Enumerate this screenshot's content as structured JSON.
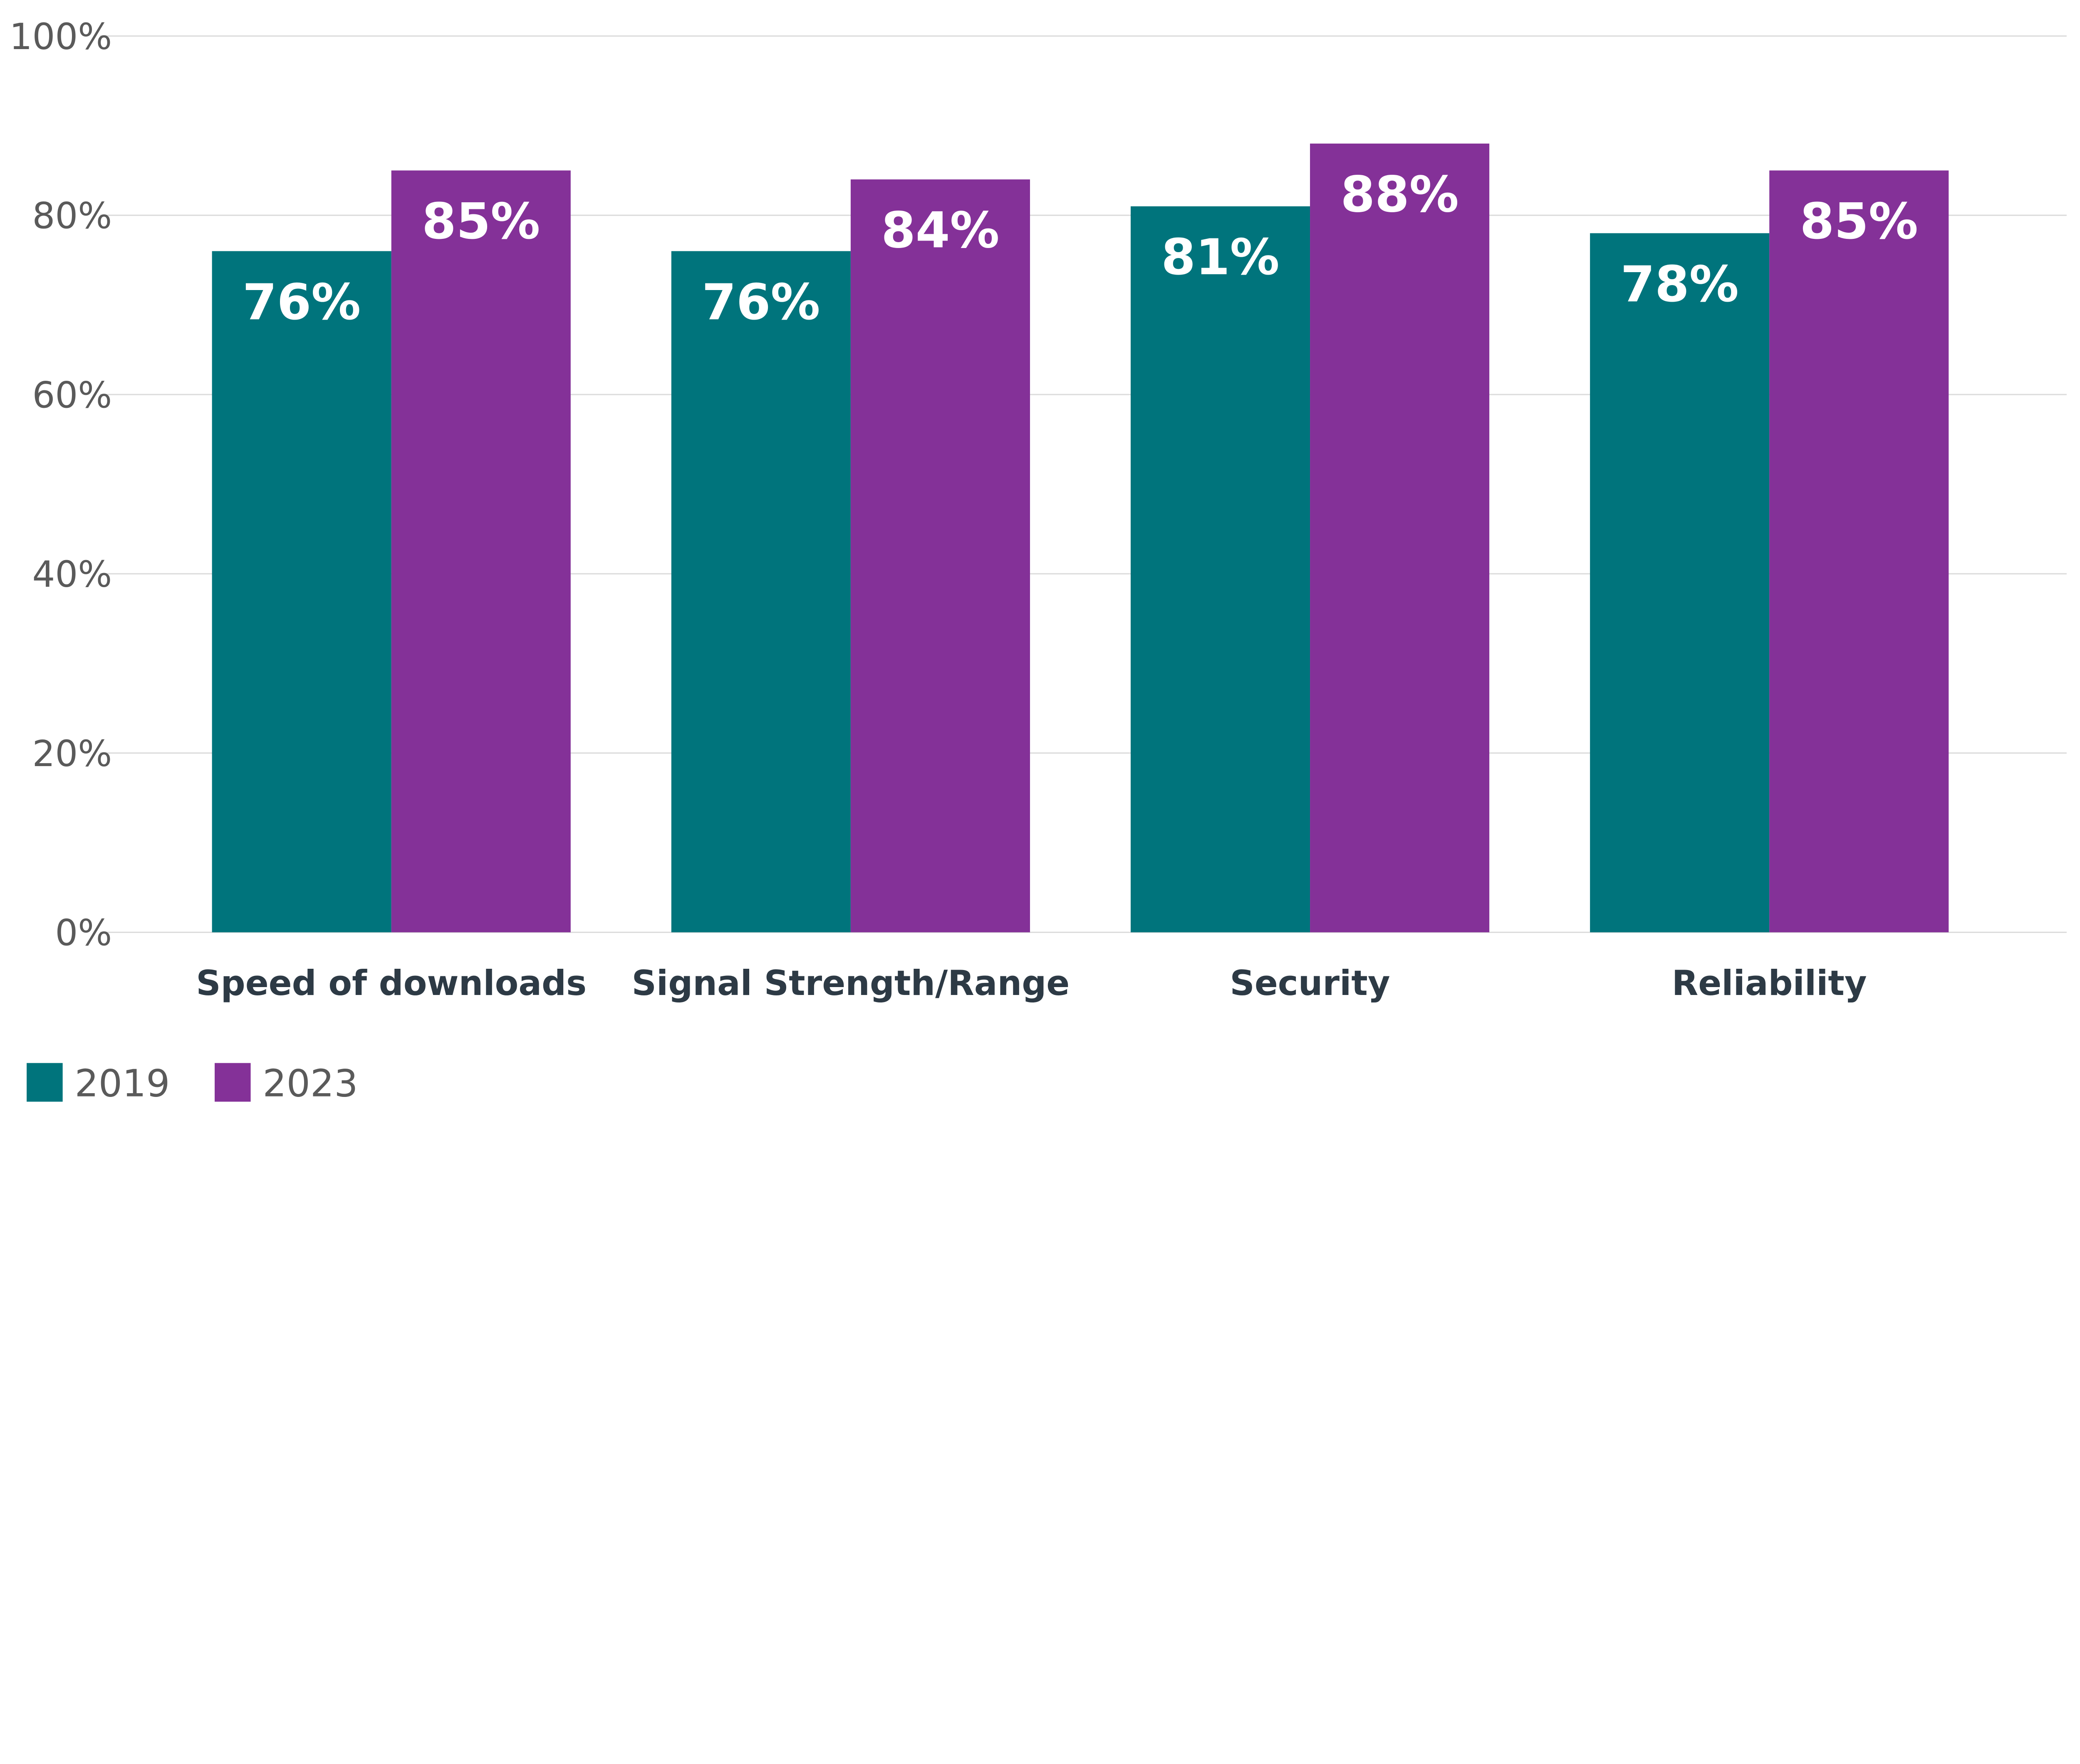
{
  "chart_data": {
    "type": "bar",
    "title": "",
    "xlabel": "",
    "ylabel": "",
    "categories": [
      "Speed of downloads",
      "Signal Strength/Range",
      "Security",
      "Reliability"
    ],
    "series": [
      {
        "name": "2019",
        "values": [
          76,
          76,
          81,
          78
        ],
        "labels": [
          "76%",
          "76%",
          "81%",
          "78%"
        ],
        "color": "#00747C"
      },
      {
        "name": "2023",
        "values": [
          85,
          84,
          88,
          85
        ],
        "labels": [
          "85%",
          "84%",
          "88%",
          "85%"
        ],
        "color": "#843198"
      }
    ],
    "ylim": [
      0,
      100
    ],
    "yticks": [
      0,
      20,
      40,
      60,
      80,
      100
    ],
    "ytick_labels": [
      "0%",
      "20%",
      "40%",
      "60%",
      "80%",
      "100%"
    ],
    "grid": true,
    "legend": "bottom-left"
  }
}
